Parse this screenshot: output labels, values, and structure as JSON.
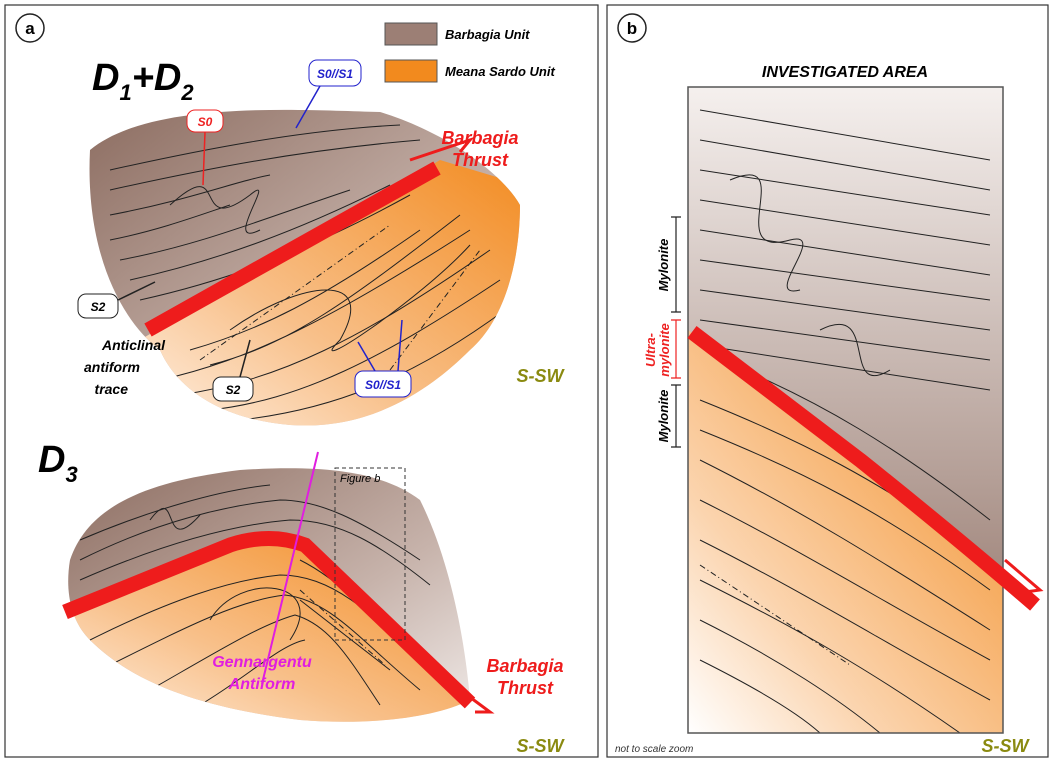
{
  "panel_a": {
    "letter": "a",
    "legend": [
      "Barbagia Unit",
      "Meana Sardo Unit"
    ],
    "stage_1": [
      "D",
      "1",
      "+D",
      "2"
    ],
    "stage_2": [
      "D",
      "3"
    ],
    "thrust_upper": [
      "Barbagia",
      "Thrust"
    ],
    "thrust_lower": [
      "Barbagia",
      "Thrust"
    ],
    "s0": "S0",
    "s0s1_top": "S0//S1",
    "s0s1_bottom": "S0//S1",
    "s2_left": "S2",
    "s2_bottom": "S2",
    "anticlinal": [
      "Anticlinal",
      "antiform",
      "trace"
    ],
    "direction_upper": "S-SW",
    "figure_b": "Figure b",
    "gennargentu": [
      "Gennargentu",
      "Antiform"
    ],
    "direction_lower": "S-SW"
  },
  "panel_b": {
    "letter": "b",
    "title": "INVESTIGATED AREA",
    "mylonite_upper": "Mylonite",
    "ultramylonite": [
      "Ultra-",
      "mylonite"
    ],
    "mylonite_lower": "Mylonite",
    "note": "not to scale zoom",
    "direction": "S-SW"
  }
}
